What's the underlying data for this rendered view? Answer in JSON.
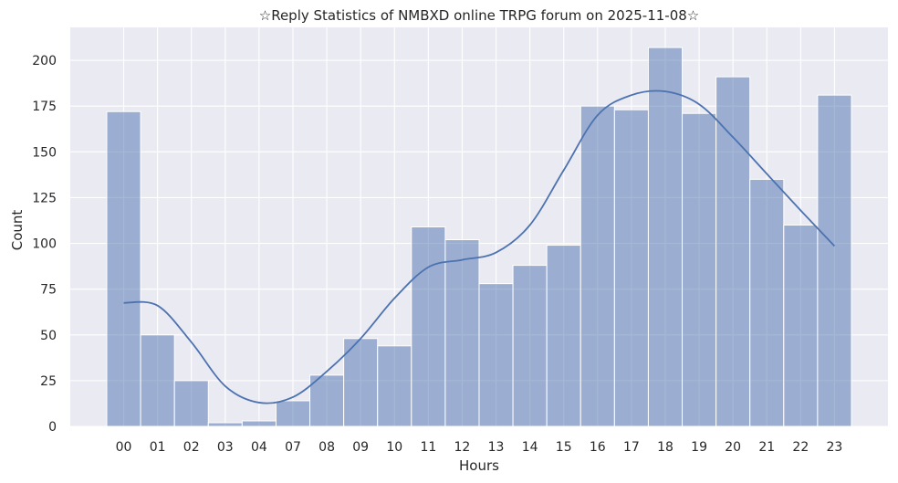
{
  "chart_data": {
    "type": "bar",
    "title": "☆Reply Statistics of NMBXD online TRPG forum on 2025-11-08☆",
    "xlabel": "Hours",
    "ylabel": "Count",
    "categories": [
      "00",
      "01",
      "02",
      "03",
      "04",
      "07",
      "08",
      "09",
      "10",
      "11",
      "12",
      "13",
      "14",
      "15",
      "16",
      "17",
      "18",
      "19",
      "20",
      "21",
      "22",
      "23"
    ],
    "values": [
      172,
      50,
      25,
      2,
      3,
      14,
      28,
      48,
      44,
      109,
      102,
      78,
      88,
      99,
      175,
      173,
      207,
      171,
      191,
      135,
      110,
      181
    ],
    "kde_values": [
      67.5,
      66,
      46,
      22,
      13,
      16,
      30,
      48,
      70,
      87,
      91,
      95,
      110,
      140,
      170,
      181,
      183,
      176,
      158,
      138,
      118,
      98.5
    ],
    "yticks": [
      0,
      25,
      50,
      75,
      100,
      125,
      150,
      175,
      200
    ],
    "ylim": [
      0,
      218
    ],
    "grid": true,
    "colors": {
      "background": "#eaeaf2",
      "bar_fill": "#4c72b0",
      "bar_fill_opacity": 0.5,
      "kde_line": "#4c72b0",
      "grid": "#ffffff"
    }
  }
}
